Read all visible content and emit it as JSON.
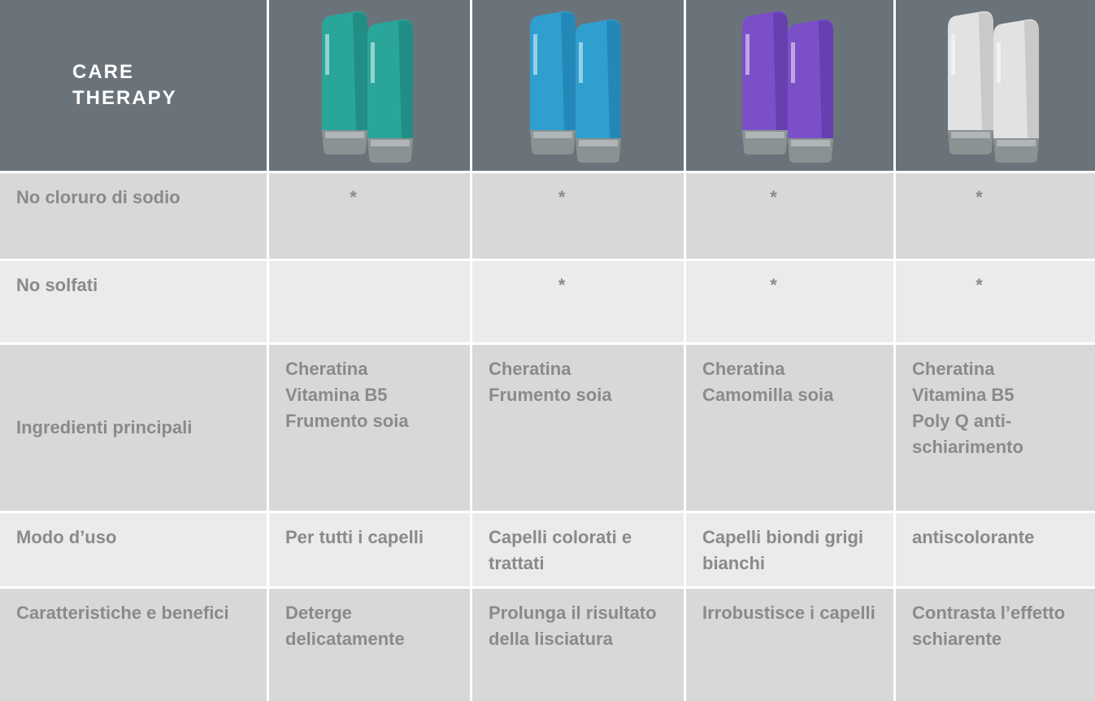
{
  "header": {
    "title": "CARE THERAPY"
  },
  "table": {
    "rows": [
      {
        "label": "No cloruro di sodio",
        "cells": [
          "*",
          "*",
          "*",
          "*"
        ]
      },
      {
        "label": "No solfati",
        "cells": [
          null,
          "*",
          "*",
          "*"
        ]
      },
      {
        "label": "Ingredienti principali",
        "cells": [
          [
            "Cheratina",
            "Vitamina B5",
            "Frumento soia"
          ],
          [
            "Cheratina",
            "Frumento soia"
          ],
          [
            "Cheratina",
            "Camomilla soia"
          ],
          [
            "Cheratina",
            "Vitamina B5",
            "Poly Q anti-schiarimento"
          ]
        ]
      },
      {
        "label": "Modo d’uso",
        "cells": [
          "Per tutti i capelli",
          "Capelli colorati e trattati",
          "Capelli biondi grigi bianchi",
          "antiscolorante"
        ]
      },
      {
        "label": "Caratteristiche e benefici",
        "cells": [
          "Deterge delicatamente",
          "Prolunga il risultato della lisciatura",
          "Irrobustisce i capelli",
          "Contrasta l’effetto schiarente"
        ]
      }
    ]
  }
}
